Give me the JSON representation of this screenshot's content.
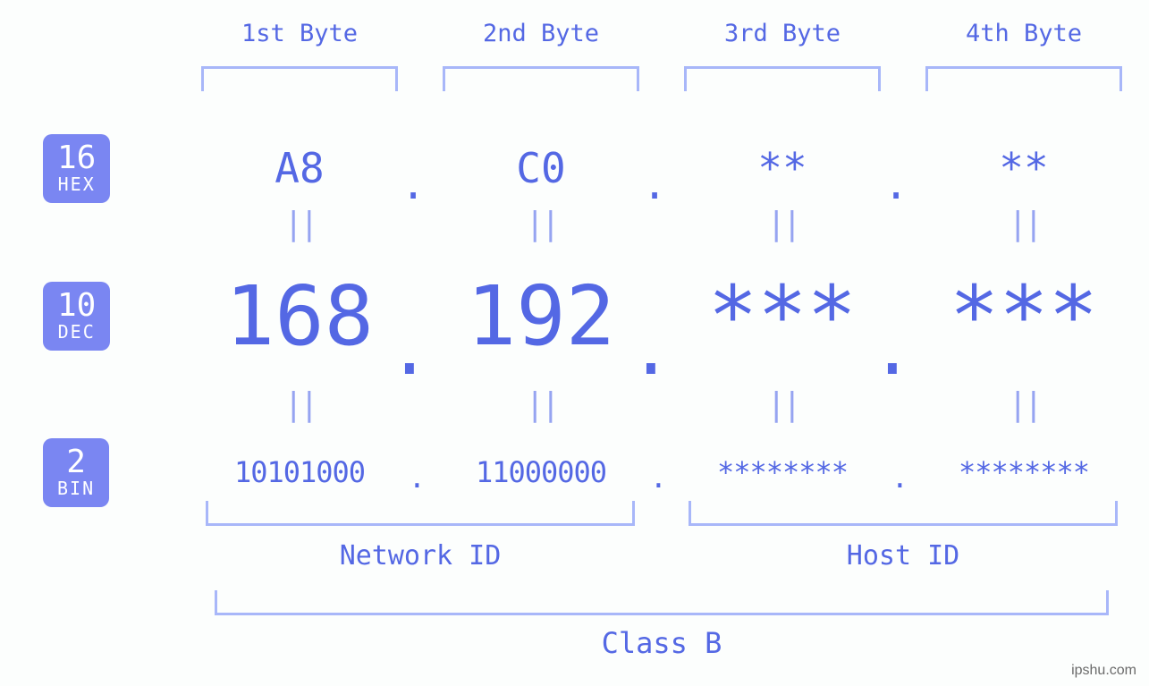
{
  "colors": {
    "bracket": "#a8b7f9",
    "text_primary": "#5468e4",
    "text_light": "#96a4f1",
    "badge_bg": "#7a86f2",
    "badge_fg": "#ffffff",
    "background": "#fcfefd"
  },
  "byte_headers": [
    "1st Byte",
    "2nd Byte",
    "3rd Byte",
    "4th Byte"
  ],
  "bases": {
    "hex": {
      "num": "16",
      "label": "HEX",
      "values": [
        "A8",
        "C0",
        "**",
        "**"
      ]
    },
    "dec": {
      "num": "10",
      "label": "DEC",
      "values": [
        "168",
        "192",
        "***",
        "***"
      ]
    },
    "bin": {
      "num": "2",
      "label": "BIN",
      "values": [
        "10101000",
        "11000000",
        "********",
        "********"
      ]
    }
  },
  "equals_glyph": "||",
  "sections": {
    "network": "Network ID",
    "host": "Host ID"
  },
  "class_label": "Class B",
  "watermark": "ipshu.com"
}
